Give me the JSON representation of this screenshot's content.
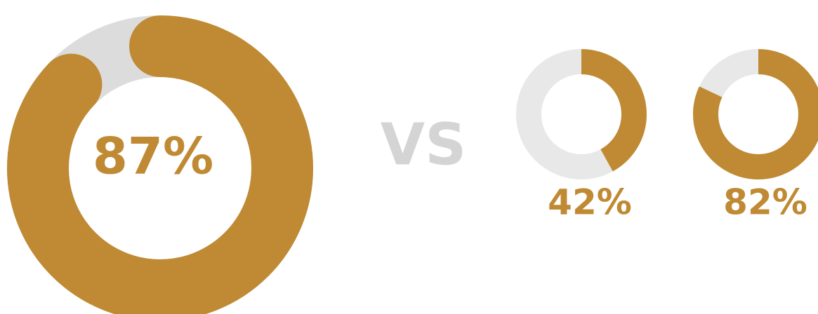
{
  "separator": "VS",
  "chart_data": [
    {
      "type": "donut",
      "values": [
        87
      ],
      "value_labels": [
        "87%"
      ],
      "color": "#bf8a33",
      "track_color": "#dcdcdc",
      "linecap": "round"
    },
    {
      "type": "donut",
      "values": [
        42
      ],
      "value_labels": [
        "42%"
      ],
      "color": "#bf8a33",
      "track_color": "#e8e8e8",
      "linecap": "butt"
    },
    {
      "type": "donut",
      "values": [
        82
      ],
      "value_labels": [
        "82%"
      ],
      "color": "#bf8a33",
      "track_color": "#e8e8e8",
      "linecap": "butt"
    }
  ]
}
